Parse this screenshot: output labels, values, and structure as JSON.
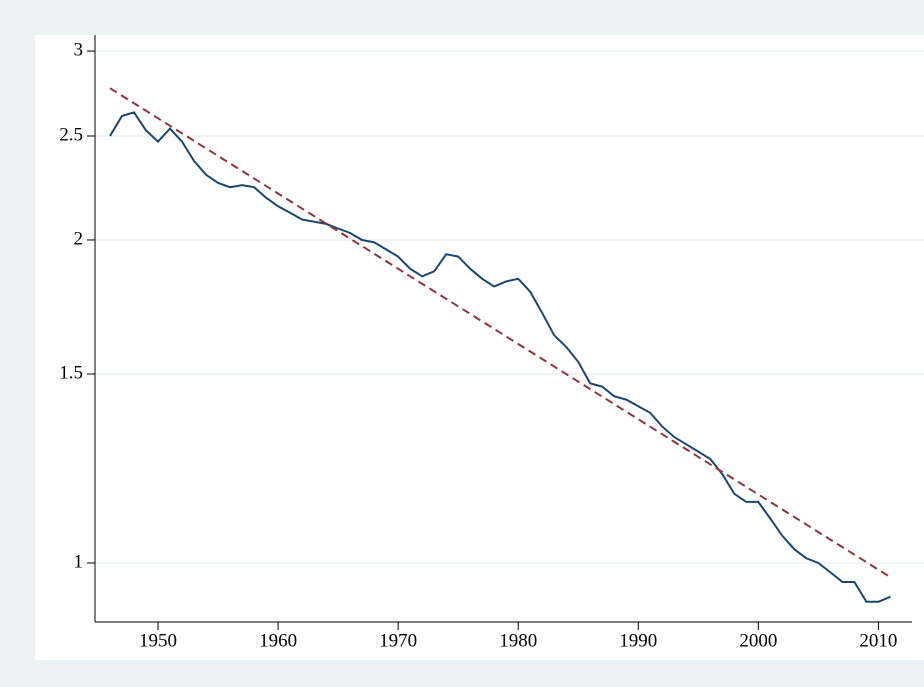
{
  "chart_data": {
    "type": "line",
    "log_y": true,
    "grid": true,
    "x": [
      1946,
      1947,
      1948,
      1949,
      1950,
      1951,
      1952,
      1953,
      1954,
      1955,
      1956,
      1957,
      1958,
      1959,
      1960,
      1961,
      1962,
      1963,
      1964,
      1965,
      1966,
      1967,
      1968,
      1969,
      1970,
      1971,
      1972,
      1973,
      1974,
      1975,
      1976,
      1977,
      1978,
      1979,
      1980,
      1981,
      1982,
      1983,
      1984,
      1985,
      1986,
      1987,
      1988,
      1989,
      1990,
      1991,
      1992,
      1993,
      1994,
      1995,
      1996,
      1997,
      1998,
      1999,
      2000,
      2001,
      2002,
      2003,
      2004,
      2005,
      2006,
      2007,
      2008,
      2009,
      2010,
      2011
    ],
    "series": [
      {
        "color": "#1a476f",
        "values": [
          2.5,
          2.61,
          2.63,
          2.53,
          2.47,
          2.54,
          2.47,
          2.37,
          2.3,
          2.26,
          2.24,
          2.25,
          2.24,
          2.19,
          2.15,
          2.12,
          2.09,
          2.08,
          2.07,
          2.05,
          2.03,
          2.0,
          1.99,
          1.96,
          1.93,
          1.88,
          1.85,
          1.87,
          1.94,
          1.93,
          1.88,
          1.84,
          1.81,
          1.83,
          1.84,
          1.79,
          1.71,
          1.63,
          1.59,
          1.54,
          1.47,
          1.46,
          1.43,
          1.42,
          1.4,
          1.38,
          1.34,
          1.31,
          1.29,
          1.27,
          1.25,
          1.21,
          1.16,
          1.14,
          1.14,
          1.1,
          1.06,
          1.03,
          1.01,
          1.0,
          0.98,
          0.96,
          0.96,
          0.92,
          0.92,
          0.93
        ]
      },
      {
        "color": "#90353b",
        "dashed": true,
        "x": [
          1946,
          2011
        ],
        "values": [
          2.77,
          0.97
        ]
      }
    ],
    "xlim": [
      1944.75,
      2012.8
    ],
    "xticks": [
      1950,
      1960,
      1970,
      1980,
      1990,
      2000,
      2010
    ],
    "ylim": [
      0.881,
      3.105
    ],
    "yticks": [
      1,
      1.5,
      2,
      2.5,
      3
    ]
  }
}
